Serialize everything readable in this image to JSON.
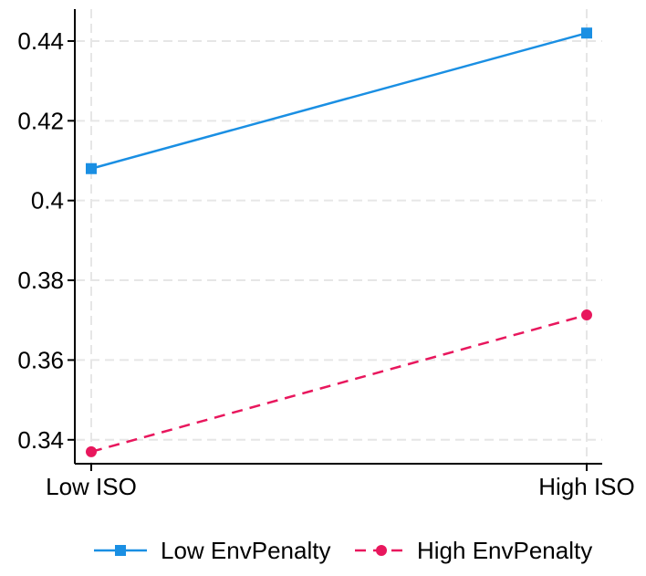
{
  "chart_data": {
    "type": "line",
    "title": "",
    "xlabel": "",
    "ylabel": "",
    "categories": [
      "Low ISO",
      "High ISO"
    ],
    "ylim": [
      0.334,
      0.448
    ],
    "yticks": [
      0.34,
      0.36,
      0.38,
      0.4,
      0.42,
      0.44
    ],
    "ytick_labels": [
      "0.34",
      "0.36",
      "0.38",
      "0.4",
      "0.42",
      "0.44"
    ],
    "grid": true,
    "legend_position": "bottom",
    "series": [
      {
        "name": "Low EnvPenalty",
        "values": [
          0.408,
          0.442
        ],
        "color": "#1a8fe3",
        "line_style": "solid",
        "marker": "square"
      },
      {
        "name": "High EnvPenalty",
        "values": [
          0.337,
          0.3713
        ],
        "color": "#e8175d",
        "line_style": "dashed",
        "marker": "circle"
      }
    ]
  }
}
